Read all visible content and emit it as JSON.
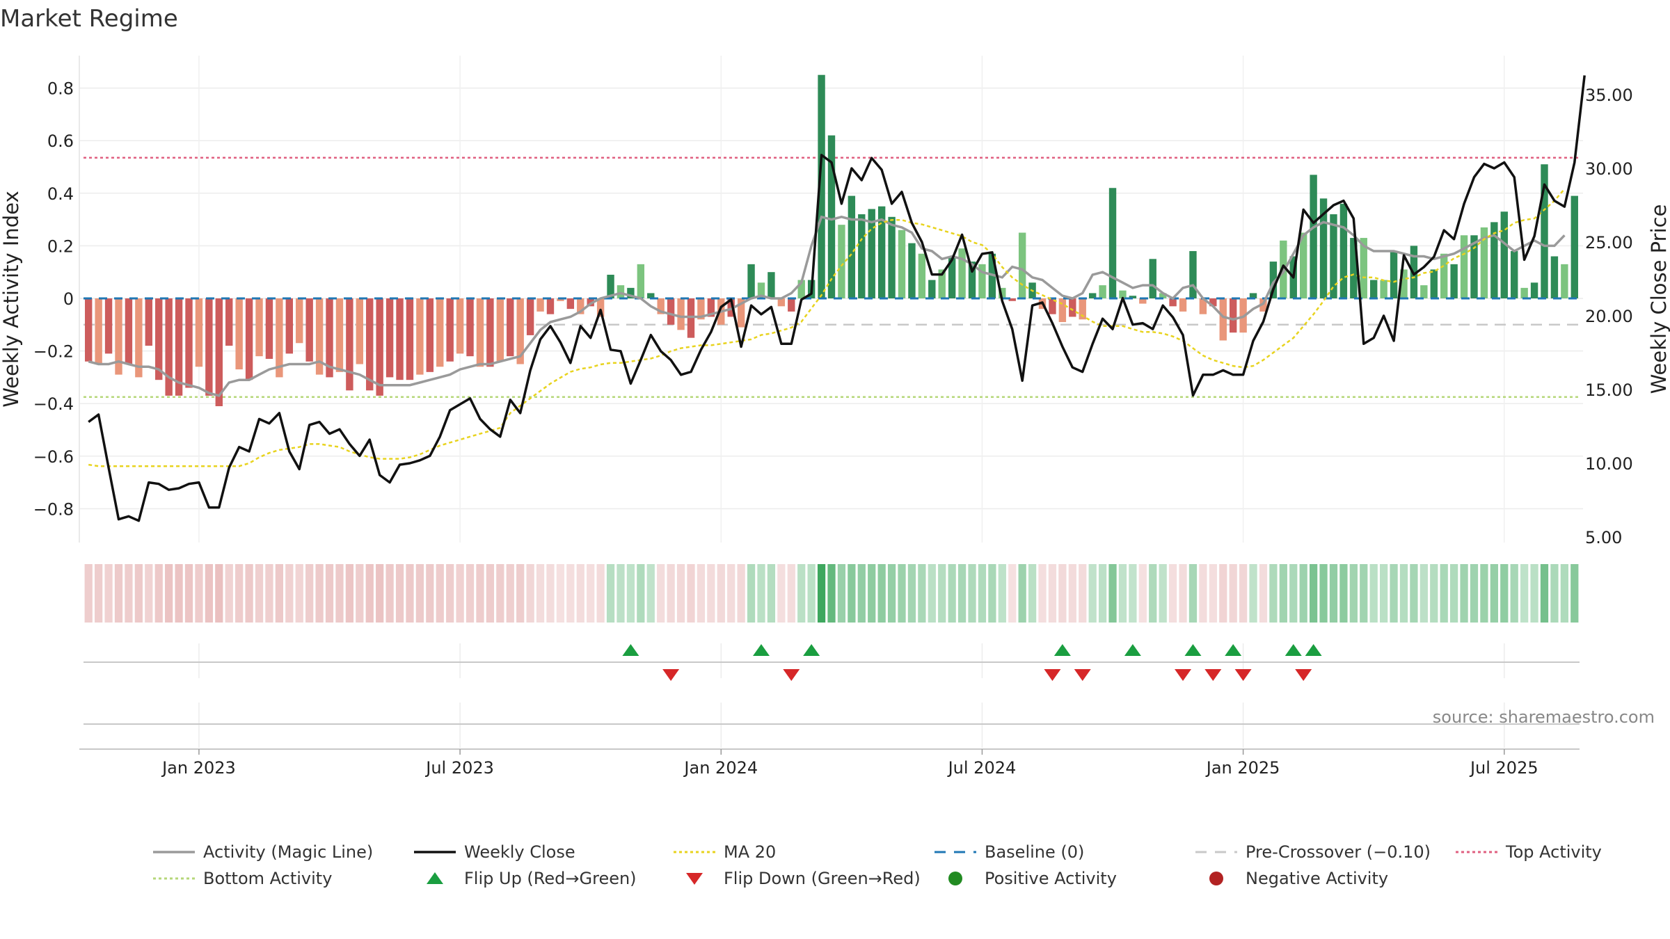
{
  "chart_data": {
    "type": "bar",
    "title": "Market Regime",
    "ylabel": "Weekly Activity Index",
    "y2label": "Weekly Close Price",
    "ylim": [
      -0.92,
      0.92
    ],
    "y2lim": [
      2.9,
      37.8
    ],
    "yticks": [
      "0.8",
      "0.6",
      "0.4",
      "0.2",
      "0",
      "−0.2",
      "−0.4",
      "−0.6",
      "−0.8"
    ],
    "yticks_values": [
      0.8,
      0.6,
      0.4,
      0.2,
      0,
      -0.2,
      -0.4,
      -0.6,
      -0.8
    ],
    "y2ticks": [
      "35.00",
      "30.00",
      "25.00",
      "20.00",
      "15.00",
      "10.00",
      "5.00"
    ],
    "y2ticks_values": [
      35,
      30,
      25,
      20,
      15,
      10,
      5
    ],
    "xticks": [
      "Jan 2023",
      "Jul 2023",
      "Jan 2024",
      "Jul 2024",
      "Jan 2025",
      "Jul 2025"
    ],
    "xticks_weeks": [
      11,
      37,
      63,
      89,
      115,
      141
    ],
    "grid": true,
    "source": "source: sharemaestro.com",
    "levels": {
      "top_activity": 0.535,
      "bottom_activity": -0.375,
      "pre_crossover": -0.1,
      "baseline": 0
    },
    "activity": [
      -0.24,
      -0.25,
      -0.21,
      -0.29,
      -0.25,
      -0.3,
      -0.18,
      -0.31,
      -0.37,
      -0.37,
      -0.34,
      -0.26,
      -0.37,
      -0.41,
      -0.18,
      -0.27,
      -0.31,
      -0.22,
      -0.23,
      -0.3,
      -0.21,
      -0.17,
      -0.24,
      -0.29,
      -0.3,
      -0.28,
      -0.35,
      -0.25,
      -0.35,
      -0.37,
      -0.3,
      -0.31,
      -0.31,
      -0.29,
      -0.28,
      -0.26,
      -0.24,
      -0.21,
      -0.22,
      -0.26,
      -0.26,
      -0.24,
      -0.22,
      -0.25,
      -0.14,
      -0.05,
      -0.06,
      -0.01,
      -0.04,
      -0.06,
      -0.03,
      -0.07,
      0.09,
      0.05,
      0.04,
      0.13,
      0.02,
      -0.06,
      -0.1,
      -0.12,
      -0.15,
      -0.08,
      -0.07,
      -0.1,
      -0.07,
      -0.11,
      0.13,
      0.06,
      0.1,
      -0.03,
      -0.05,
      0.07,
      0.07,
      0.85,
      0.62,
      0.28,
      0.39,
      0.32,
      0.34,
      0.35,
      0.31,
      0.26,
      0.21,
      0.17,
      0.07,
      0.11,
      0.16,
      0.19,
      0.14,
      0.13,
      0.17,
      0.04,
      -0.01,
      0.25,
      0.06,
      -0.04,
      -0.06,
      -0.09,
      -0.07,
      -0.08,
      0.02,
      0.05,
      0.42,
      0.03,
      0.01,
      -0.02,
      0.15,
      0.02,
      -0.03,
      -0.05,
      0.18,
      -0.06,
      -0.03,
      -0.16,
      -0.13,
      -0.13,
      0.02,
      -0.05,
      0.14,
      0.22,
      0.16,
      0.25,
      0.47,
      0.38,
      0.32,
      0.36,
      0.23,
      0.23,
      0.07,
      0.07,
      0.18,
      0.11,
      0.2,
      0.05,
      0.11,
      0.17,
      0.13,
      0.24,
      0.24,
      0.27,
      0.29,
      0.33,
      0.18,
      0.04,
      0.06,
      0.51,
      0.16,
      0.13,
      0.39
    ],
    "magic_line": [
      -0.24,
      -0.25,
      -0.25,
      -0.24,
      -0.25,
      -0.26,
      -0.26,
      -0.27,
      -0.3,
      -0.32,
      -0.33,
      -0.34,
      -0.36,
      -0.37,
      -0.32,
      -0.31,
      -0.31,
      -0.29,
      -0.27,
      -0.26,
      -0.25,
      -0.25,
      -0.25,
      -0.24,
      -0.26,
      -0.27,
      -0.28,
      -0.29,
      -0.31,
      -0.33,
      -0.33,
      -0.33,
      -0.33,
      -0.32,
      -0.31,
      -0.3,
      -0.29,
      -0.27,
      -0.26,
      -0.25,
      -0.25,
      -0.24,
      -0.23,
      -0.22,
      -0.17,
      -0.12,
      -0.09,
      -0.08,
      -0.07,
      -0.05,
      -0.02,
      0.0,
      0.01,
      0.02,
      0.01,
      0.0,
      -0.03,
      -0.05,
      -0.06,
      -0.07,
      -0.07,
      -0.07,
      -0.06,
      -0.05,
      -0.04,
      -0.02,
      0.0,
      0.01,
      0.0,
      0.0,
      0.02,
      0.06,
      0.2,
      0.31,
      0.3,
      0.31,
      0.3,
      0.3,
      0.29,
      0.3,
      0.28,
      0.27,
      0.25,
      0.19,
      0.18,
      0.15,
      0.16,
      0.15,
      0.13,
      0.1,
      0.09,
      0.08,
      0.12,
      0.11,
      0.08,
      0.07,
      0.04,
      0.01,
      0.0,
      0.02,
      0.09,
      0.1,
      0.08,
      0.06,
      0.04,
      0.05,
      0.05,
      0.02,
      0.0,
      0.04,
      0.05,
      0.0,
      -0.03,
      -0.07,
      -0.08,
      -0.07,
      -0.04,
      -0.02,
      0.06,
      0.1,
      0.17,
      0.24,
      0.27,
      0.29,
      0.28,
      0.27,
      0.24,
      0.2,
      0.18,
      0.18,
      0.18,
      0.17,
      0.16,
      0.16,
      0.15,
      0.16,
      0.17,
      0.19,
      0.21,
      0.23,
      0.24,
      0.21,
      0.18,
      0.2,
      0.22,
      0.2,
      0.2,
      0.24
    ],
    "weekly_close": [
      12.8,
      13.3,
      9.7,
      6.2,
      6.4,
      6.1,
      8.7,
      8.6,
      8.2,
      8.3,
      8.6,
      8.7,
      7.0,
      7.0,
      9.7,
      11.1,
      10.8,
      13.0,
      12.7,
      13.4,
      10.8,
      9.6,
      12.6,
      12.8,
      12.0,
      12.3,
      11.3,
      10.5,
      11.6,
      9.2,
      8.7,
      9.9,
      10.0,
      10.2,
      10.5,
      11.8,
      13.6,
      14.0,
      14.4,
      13.0,
      12.3,
      11.8,
      14.3,
      13.4,
      16.3,
      18.4,
      19.3,
      18.2,
      16.8,
      19.3,
      18.5,
      20.4,
      17.7,
      17.6,
      15.4,
      17.0,
      18.7,
      17.6,
      17.0,
      16.0,
      16.2,
      17.7,
      18.9,
      20.6,
      21.1,
      17.9,
      20.7,
      20.1,
      20.6,
      18.1,
      18.1,
      21.1,
      21.5,
      30.9,
      30.4,
      27.6,
      30.0,
      29.2,
      30.7,
      29.9,
      27.6,
      28.4,
      26.3,
      25.0,
      22.8,
      22.8,
      23.8,
      25.5,
      23.0,
      24.2,
      24.3,
      21.0,
      19.1,
      15.6,
      20.7,
      20.9,
      19.5,
      17.9,
      16.5,
      16.2,
      18.1,
      19.8,
      19.1,
      21.2,
      19.4,
      19.5,
      19.1,
      20.7,
      19.9,
      18.7,
      14.6,
      16.0,
      16.0,
      16.3,
      16.0,
      16.0,
      18.3,
      19.6,
      21.8,
      23.4,
      22.6,
      27.2,
      26.3,
      26.9,
      27.5,
      27.8,
      26.6,
      18.1,
      18.5,
      20.0,
      18.3,
      24.1,
      22.8,
      23.3,
      24.0,
      25.8,
      25.2,
      27.6,
      29.4,
      30.3,
      30.0,
      30.4,
      29.4,
      23.8,
      25.4,
      28.9,
      27.8,
      27.4,
      30.4,
      36.3
    ],
    "ma20": [
      9.9,
      9.8,
      9.8,
      9.8,
      9.8,
      9.8,
      9.8,
      9.8,
      9.8,
      9.8,
      9.8,
      9.8,
      9.8,
      9.8,
      9.8,
      9.8,
      10.0,
      10.4,
      10.7,
      10.9,
      11.0,
      11.1,
      11.3,
      11.3,
      11.2,
      11.1,
      10.8,
      10.6,
      10.4,
      10.3,
      10.3,
      10.3,
      10.4,
      10.6,
      10.9,
      11.2,
      11.4,
      11.6,
      11.8,
      12.0,
      12.2,
      12.4,
      13.4,
      13.9,
      14.4,
      14.9,
      15.4,
      15.8,
      16.2,
      16.4,
      16.5,
      16.7,
      16.8,
      16.8,
      16.9,
      17.0,
      17.1,
      17.3,
      17.6,
      17.8,
      17.9,
      18.0,
      18.0,
      18.1,
      18.2,
      18.3,
      18.4,
      18.7,
      18.8,
      19.0,
      19.2,
      19.6,
      20.5,
      21.4,
      22.5,
      23.4,
      24.2,
      25.2,
      25.9,
      26.3,
      26.5,
      26.5,
      26.3,
      26.2,
      26.0,
      25.8,
      25.6,
      25.4,
      25.0,
      24.8,
      24.2,
      23.3,
      22.6,
      22.1,
      21.7,
      21.4,
      21.1,
      20.8,
      20.4,
      20.0,
      19.6,
      19.3,
      19.3,
      19.3,
      19.1,
      18.9,
      18.9,
      18.8,
      18.6,
      18.3,
      17.8,
      17.3,
      17.0,
      16.8,
      16.6,
      16.5,
      16.6,
      17.0,
      17.5,
      18.0,
      18.5,
      19.3,
      20.1,
      21.0,
      22.0,
      22.6,
      22.8,
      22.6,
      22.6,
      22.4,
      22.3,
      22.5,
      22.6,
      22.9,
      23.0,
      23.4,
      23.9,
      24.2,
      24.6,
      25.2,
      25.6,
      25.8,
      26.3,
      26.5,
      26.6,
      27.2,
      27.8,
      28.6
    ],
    "flip_up_weeks": [
      54,
      67,
      72,
      97,
      104,
      110,
      114,
      120,
      122
    ],
    "flip_down_weeks": [
      58,
      70,
      96,
      99,
      109,
      112,
      115,
      121
    ],
    "colors": {
      "green_dark": "#2e8b57",
      "green_light": "#7cc47f",
      "red_dark": "#cd5c5c",
      "red_light": "#e9967a",
      "magic_line": "#9a9a9a",
      "weekly_close": "#111111",
      "ma20": "#e8d31e",
      "baseline": "#1f77b4",
      "pre_crossover": "#c8c8c8",
      "top_activity": "#e06080",
      "bottom_activity": "#b6d77a",
      "flip_up": "#1a9e40",
      "flip_down": "#d62728",
      "positive": "#228b22",
      "negative": "#b22222"
    }
  },
  "legend": [
    {
      "label": "Activity (Magic Line)",
      "marker": "line-solid",
      "color": "#9a9a9a"
    },
    {
      "label": "Weekly Close",
      "marker": "line-solid",
      "color": "#111111"
    },
    {
      "label": "MA 20",
      "marker": "line-dotted",
      "color": "#e8d31e"
    },
    {
      "label": "Baseline (0)",
      "marker": "line-dashed",
      "color": "#1f77b4"
    },
    {
      "label": "Pre-Crossover (−0.10)",
      "marker": "line-dashed",
      "color": "#c8c8c8"
    },
    {
      "label": "Top Activity",
      "marker": "line-dotted",
      "color": "#e06080"
    },
    {
      "label": "Bottom Activity",
      "marker": "line-dotted",
      "color": "#b6d77a"
    },
    {
      "label": "Flip Up (Red→Green)",
      "marker": "triangle-up",
      "color": "#1a9e40"
    },
    {
      "label": "Flip Down (Green→Red)",
      "marker": "triangle-down",
      "color": "#d62728"
    },
    {
      "label": "Positive Activity",
      "marker": "circle",
      "color": "#228b22"
    },
    {
      "label": "Negative Activity",
      "marker": "circle",
      "color": "#b22222"
    }
  ]
}
